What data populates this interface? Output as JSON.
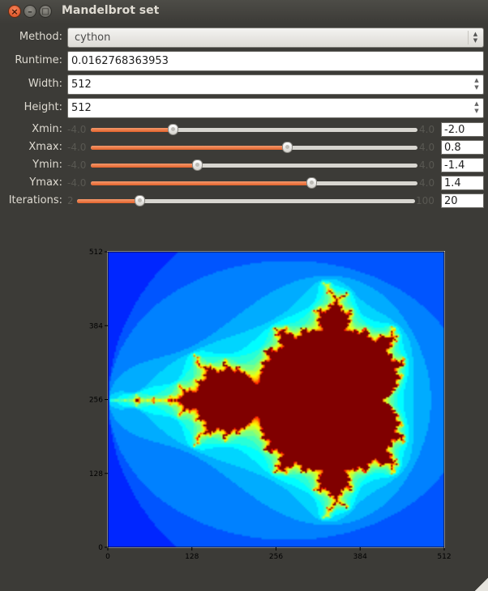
{
  "window": {
    "title": "Mandelbrot set",
    "close_glyph": "×",
    "minimize_glyph": "–",
    "maximize_glyph": "□"
  },
  "form": {
    "method_label": "Method:",
    "method_value": "cython",
    "runtime_label": "Runtime:",
    "runtime_value": "0.0162768363953",
    "width_label": "Width:",
    "width_value": "512",
    "height_label": "Height:",
    "height_value": "512"
  },
  "sliders": [
    {
      "label": "Xmin:",
      "min": "-4.0",
      "max": "4.0",
      "value": "-2.0",
      "fraction": 0.25
    },
    {
      "label": "Xmax:",
      "min": "-4.0",
      "max": "4.0",
      "value": "0.8",
      "fraction": 0.6
    },
    {
      "label": "Ymin:",
      "min": "-4.0",
      "max": "4.0",
      "value": "-1.4",
      "fraction": 0.325
    },
    {
      "label": "Ymax:",
      "min": "-4.0",
      "max": "4.0",
      "value": "1.4",
      "fraction": 0.675
    },
    {
      "label": "Iterations:",
      "min": "2",
      "max": "100",
      "value": "20",
      "fraction": 0.184
    }
  ],
  "chart_data": {
    "type": "heatmap",
    "description_type": "image",
    "x_ticks": [
      "0",
      "128",
      "256",
      "384",
      "512"
    ],
    "y_ticks": [
      "0",
      "128",
      "256",
      "384",
      "512"
    ],
    "xlim": [
      0,
      512
    ],
    "ylim": [
      0,
      512
    ],
    "colormap": "jet",
    "colors": {
      "outer": "#00008f",
      "inner": "#800000"
    }
  }
}
